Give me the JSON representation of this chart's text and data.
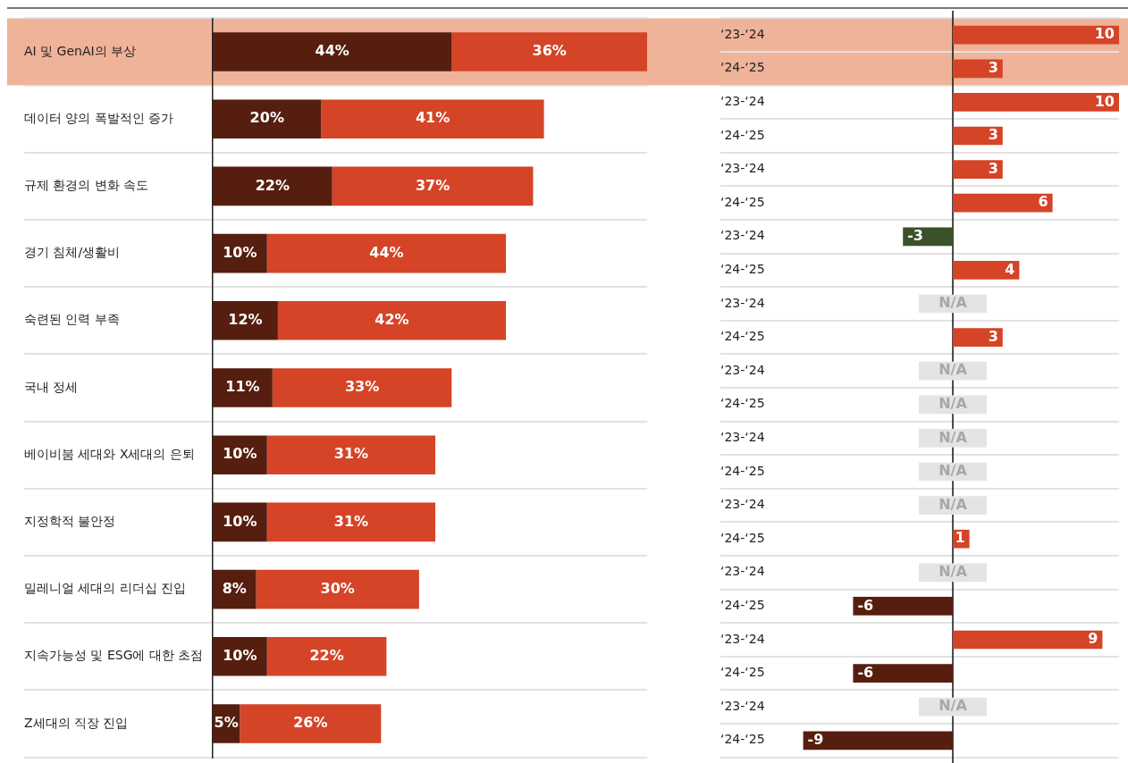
{
  "chart_data": [
    {
      "type": "bar",
      "orientation": "horizontal",
      "stacked": true,
      "tick_labels": "y",
      "grid": "y",
      "categories": [
        "AI 및 GenAI의 부상",
        "데이터 양의 폭발적인 증가",
        "규제 환경의 변화 속도",
        "경기 침체/생활비",
        "숙련된 인력 부족",
        "국내 정세",
        "베이비붐 세대와 X세대의 은퇴",
        "지정학적 불안정",
        "밀레니얼 세대의 리더십 진입",
        "지속가능성 및 ESG에 대한 초점",
        "Z세대의 직장 진입"
      ],
      "series": [
        {
          "color": "#561e0f",
          "values": [
            44,
            20,
            22,
            10,
            12,
            11,
            10,
            10,
            8,
            10,
            5
          ],
          "value_labels": [
            "44%",
            "20%",
            "22%",
            "10%",
            "12%",
            "11%",
            "10%",
            "10%",
            "8%",
            "10%",
            "5%"
          ]
        },
        {
          "color": "#d54427",
          "values": [
            36,
            41,
            37,
            44,
            42,
            33,
            31,
            31,
            30,
            22,
            26
          ],
          "value_labels": [
            "36%",
            "41%",
            "37%",
            "44%",
            "42%",
            "33%",
            "31%",
            "31%",
            "30%",
            "22%",
            "26%"
          ]
        }
      ],
      "bands": [
        {
          "axis": "y",
          "from": "AI 및 GenAI의 부상",
          "to": "AI 및 GenAI의 부상",
          "color": "#efb399"
        }
      ]
    },
    {
      "type": "bar",
      "orientation": "horizontal",
      "tick_labels": "y",
      "grid": "y",
      "categories": [
        "‘23-‘24",
        "‘24-‘25",
        "‘23-‘24",
        "‘24-‘25",
        "‘23-‘24",
        "‘24-‘25",
        "‘23-‘24",
        "‘24-‘25",
        "‘23-‘24",
        "‘24-‘25",
        "‘23-‘24",
        "‘24-‘25",
        "‘23-‘24",
        "‘24-‘25",
        "‘23-‘24",
        "‘24-‘25",
        "‘23-‘24",
        "‘24-‘25",
        "‘23-‘24",
        "‘24-‘25",
        "‘23-‘24",
        "‘24-‘25"
      ],
      "series": [
        {
          "values": [
            10,
            3,
            10,
            3,
            3,
            6,
            -3,
            4,
            null,
            3,
            null,
            null,
            null,
            null,
            null,
            1,
            null,
            -6,
            9,
            -6,
            null,
            -9
          ],
          "colors": [
            "#d54427",
            "#d54427",
            "#d54427",
            "#d54427",
            "#d54427",
            "#d54427",
            "#3b5229",
            "#d54427",
            "#e4e4e4",
            "#d54427",
            "#e4e4e4",
            "#e4e4e4",
            "#e4e4e4",
            "#e4e4e4",
            "#e4e4e4",
            "#d54427",
            "#e4e4e4",
            "#561e0f",
            "#d54427",
            "#561e0f",
            "#e4e4e4",
            "#561e0f"
          ],
          "value_labels": [
            "10",
            "3",
            "10",
            "3",
            "3",
            "6",
            "-3",
            "4",
            "N/A",
            "3",
            "N/A",
            "N/A",
            "N/A",
            "N/A",
            "N/A",
            "1",
            "N/A",
            "-6",
            "9",
            "-6",
            "N/A",
            "-9"
          ]
        }
      ],
      "bands": [
        {
          "axis": "y",
          "from": "‘23-‘24",
          "to": "‘24-‘25",
          "color": "#efb399"
        }
      ],
      "ref_lines": [
        {
          "axis": "x",
          "value": 0,
          "color": "#111111"
        }
      ]
    }
  ]
}
